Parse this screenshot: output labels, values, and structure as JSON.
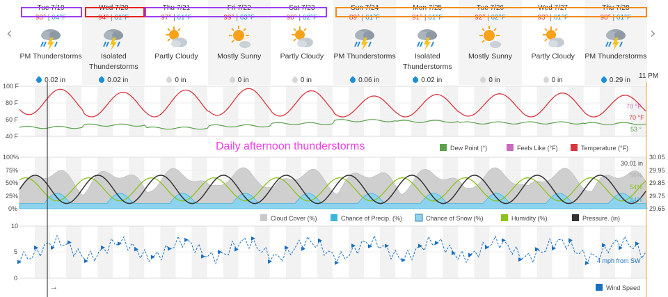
{
  "nav": {
    "prev_glyph": "‹",
    "next_glyph": "›"
  },
  "days": [
    {
      "date": "Tue 7/19",
      "hi": "98°",
      "lo": "64°F",
      "condition": "PM Thunderstorms",
      "icon": "thunderstorm-icon",
      "precip": "0.02 in",
      "wet": true
    },
    {
      "date": "Wed 7/20",
      "hi": "94°",
      "lo": "61°F",
      "condition": "Isolated Thunderstorms",
      "icon": "thunderstorm-icon",
      "precip": "0.02 in",
      "wet": true
    },
    {
      "date": "Thu 7/21",
      "hi": "97°",
      "lo": "61°F",
      "condition": "Partly Cloudy",
      "icon": "partly-cloudy-icon",
      "precip": "0 in",
      "wet": false
    },
    {
      "date": "Fri 7/22",
      "hi": "99°",
      "lo": "63°F",
      "condition": "Mostly Sunny",
      "icon": "mostly-sunny-icon",
      "precip": "0 in",
      "wet": false
    },
    {
      "date": "Sat 7/23",
      "hi": "96°",
      "lo": "62°F",
      "condition": "Partly Cloudy",
      "icon": "partly-cloudy-icon",
      "precip": "0 in",
      "wet": false
    },
    {
      "date": "Sun 7/24",
      "hi": "89°",
      "lo": "61°F",
      "condition": "PM Thunderstorms",
      "icon": "thunderstorm-icon",
      "precip": "0.06 in",
      "wet": true
    },
    {
      "date": "Mon 7/25",
      "hi": "91°",
      "lo": "61°F",
      "condition": "Isolated Thunderstorms",
      "icon": "thunderstorm-icon",
      "precip": "0.02 in",
      "wet": true
    },
    {
      "date": "Tue 7/26",
      "hi": "92°",
      "lo": "62°F",
      "condition": "Mostly Sunny",
      "icon": "mostly-sunny-icon",
      "precip": "0 in",
      "wet": false
    },
    {
      "date": "Wed 7/27",
      "hi": "93°",
      "lo": "61°F",
      "condition": "Partly Cloudy",
      "icon": "partly-cloudy-icon",
      "precip": "0 in",
      "wet": false
    },
    {
      "date": "Thu 7/28",
      "hi": "90°",
      "lo": "61°F",
      "condition": "PM Thunderstorms",
      "icon": "thunderstorm-icon",
      "precip": "0.29 in",
      "wet": true
    }
  ],
  "end_time_label": "11 PM",
  "highlight_boxes": [
    {
      "days": "Tue 7/19",
      "color": "#9b40f0"
    },
    {
      "days": "Wed 7/20",
      "color": "#e52222"
    },
    {
      "days": "Thu 7/21 – Sat 7/23",
      "color": "#9b40f0"
    },
    {
      "days": "Sun 7/24 – Thu 7/28",
      "color": "#f28c1c"
    }
  ],
  "annotation": {
    "text": "Daily afternoon thunderstorms",
    "color": "#f040e6"
  },
  "colors": {
    "temperature": "#d9363e",
    "feels_like": "#c86bc0",
    "dew_point": "#5aa34a",
    "cloud_cover": "#c9c9c9",
    "chance_precip": "#3bb6e0",
    "chance_snow": "#8ed6f0",
    "humidity": "#8cc21c",
    "pressure": "#333333",
    "wind": "#1a6fbf"
  },
  "chart_data": [
    {
      "type": "line",
      "name": "temperature-panel",
      "yticks": [
        "100 F",
        "80 F",
        "60 F",
        "40 F"
      ],
      "ylim": [
        35,
        102
      ],
      "daily_high": [
        98,
        94,
        97,
        99,
        96,
        89,
        91,
        92,
        93,
        90
      ],
      "daily_low": [
        64,
        61,
        61,
        63,
        62,
        61,
        61,
        62,
        61,
        61
      ],
      "dew_point_approx": [
        47,
        50,
        46,
        49,
        52,
        56,
        55,
        53,
        53,
        52
      ],
      "end_values": {
        "feels_like": "70 °F",
        "temperature": "70 °F",
        "dew_point": "53 °"
      },
      "legend": [
        "Dew Point (°)",
        "Feels Like (°F)",
        "Temperature (°F)"
      ]
    },
    {
      "type": "area",
      "name": "humidity-panel",
      "yticks_left": [
        "100%",
        "75%",
        "50%",
        "25%",
        "0%"
      ],
      "yticks_right": [
        "30.05",
        "29.95",
        "29.85",
        "29.75",
        "29.65"
      ],
      "end_values": {
        "pressure": "30.01 in",
        "cloud_cover": "56%",
        "humidity": "54%",
        "precip": "24%"
      },
      "legend": [
        "Cloud Cover (%)",
        "Chance of Precip. (%)",
        "Chance of Snow (%)",
        "Humidity (%)",
        "Pressure. (in)"
      ]
    },
    {
      "type": "line",
      "name": "wind-panel",
      "yticks": [
        "10",
        "5",
        "0"
      ],
      "ylim": [
        0,
        10
      ],
      "end_value": "4 mph from SW",
      "legend": [
        "Wind Speed"
      ],
      "arrow_glyph": "→"
    }
  ]
}
